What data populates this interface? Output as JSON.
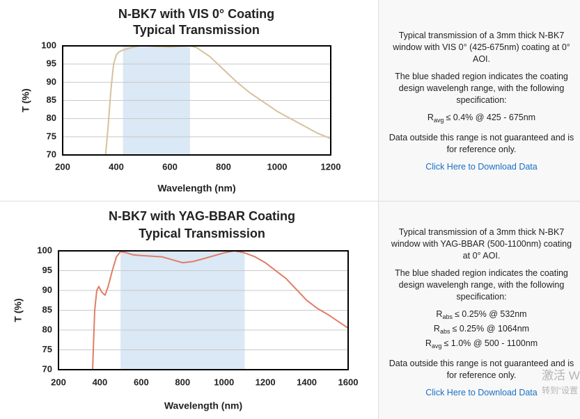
{
  "chart_data": [
    {
      "type": "line",
      "title": "N-BK7 with VIS 0° Coating",
      "subtitle": "Typical Transmission",
      "x_label": "Wavelength (nm)",
      "y_label": "T (%)",
      "x": [
        360,
        370,
        380,
        390,
        400,
        410,
        420,
        440,
        460,
        480,
        500,
        550,
        600,
        650,
        675,
        700,
        750,
        800,
        850,
        900,
        950,
        1000,
        1050,
        1100,
        1150,
        1200
      ],
      "values": [
        70,
        78,
        88,
        95,
        97.5,
        98.3,
        98.7,
        99.2,
        99.6,
        99.9,
        100,
        99.8,
        99.7,
        99.9,
        100,
        99.5,
        97,
        93.5,
        90,
        87,
        84.5,
        82,
        80,
        78,
        76,
        74.5
      ],
      "color": "#d6c19c",
      "shaded_range": [
        425,
        675
      ],
      "shade_color": "#dbe8f5",
      "xlim": [
        200,
        1200
      ],
      "xticks": [
        200,
        400,
        600,
        800,
        1000,
        1200
      ],
      "ylim": [
        70,
        100
      ],
      "yticks": [
        70,
        75,
        80,
        85,
        90,
        95,
        100
      ],
      "grid": true
    },
    {
      "type": "line",
      "title": "N-BK7 with YAG-BBAR Coating",
      "subtitle": "Typical Transmission",
      "x_label": "Wavelength (nm)",
      "y_label": "T (%)",
      "x": [
        365,
        375,
        385,
        395,
        410,
        425,
        440,
        460,
        480,
        500,
        530,
        560,
        600,
        700,
        800,
        850,
        900,
        1000,
        1050,
        1100,
        1150,
        1200,
        1300,
        1400,
        1450,
        1500,
        1600
      ],
      "values": [
        70,
        85,
        90,
        91,
        89.5,
        88.8,
        91,
        95,
        98.5,
        99.8,
        99.5,
        99,
        98.8,
        98.5,
        97,
        97.3,
        98,
        99.5,
        100,
        99.5,
        98.5,
        97,
        93,
        87.5,
        85.5,
        84,
        80.5
      ],
      "color": "#e07d66",
      "shaded_range": [
        500,
        1100
      ],
      "shade_color": "#dbe8f5",
      "xlim": [
        200,
        1600
      ],
      "xticks": [
        200,
        400,
        600,
        800,
        1000,
        1200,
        1400,
        1600
      ],
      "ylim": [
        70,
        100
      ],
      "yticks": [
        70,
        75,
        80,
        85,
        90,
        95,
        100
      ],
      "grid": true
    }
  ],
  "panels": [
    {
      "intro": "Typical transmission of a 3mm thick N-BK7 window with VIS 0° (425-675nm) coating at 0° AOI.",
      "shading": "The blue shaded region indicates the coating design wavelengh range, with the following specification:",
      "specs": [
        {
          "symbol": "R",
          "sub": "avg",
          "text": "≤ 0.4% @ 425 - 675nm"
        }
      ],
      "note": "Data outside this range is not guaranteed and is for reference only.",
      "link": "Click Here to Download Data"
    },
    {
      "intro": "Typical transmission of a 3mm thick N-BK7 window with YAG-BBAR (500-1100nm) coating at 0° AOI.",
      "shading": "The blue shaded region indicates the coating design wavelengh range, with the following specification:",
      "specs": [
        {
          "symbol": "R",
          "sub": "abs",
          "text": "≤ 0.25% @ 532nm"
        },
        {
          "symbol": "R",
          "sub": "abs",
          "text": "≤ 0.25% @ 1064nm"
        },
        {
          "symbol": "R",
          "sub": "avg",
          "text": "≤ 1.0% @ 500 - 1100nm"
        }
      ],
      "note": "Data outside this range is not guaranteed and is for reference only.",
      "link": "Click Here to Download Data"
    }
  ],
  "watermark": [
    "激活 W",
    "转到“设置"
  ]
}
